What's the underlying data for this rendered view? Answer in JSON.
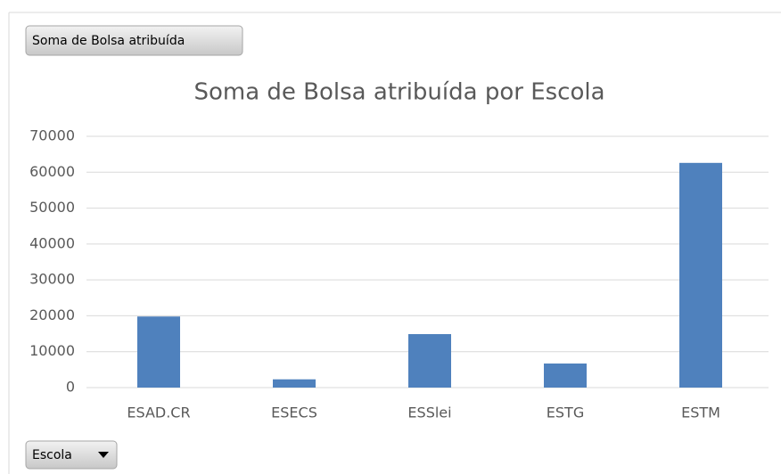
{
  "chart_data": {
    "type": "bar",
    "title": "Soma de Bolsa atribuída por Escola",
    "value_field": "Soma de Bolsa atribuída",
    "axis_field": "Escola",
    "categories": [
      "ESAD.CR",
      "ESECS",
      "ESSlei",
      "ESTG",
      "ESTM"
    ],
    "values": [
      19800,
      2300,
      14900,
      6700,
      62600
    ],
    "color": "#4f81bd",
    "ylim": [
      0,
      70000
    ],
    "yticks": [
      0,
      10000,
      20000,
      30000,
      40000,
      50000,
      60000,
      70000
    ],
    "grid": true
  }
}
